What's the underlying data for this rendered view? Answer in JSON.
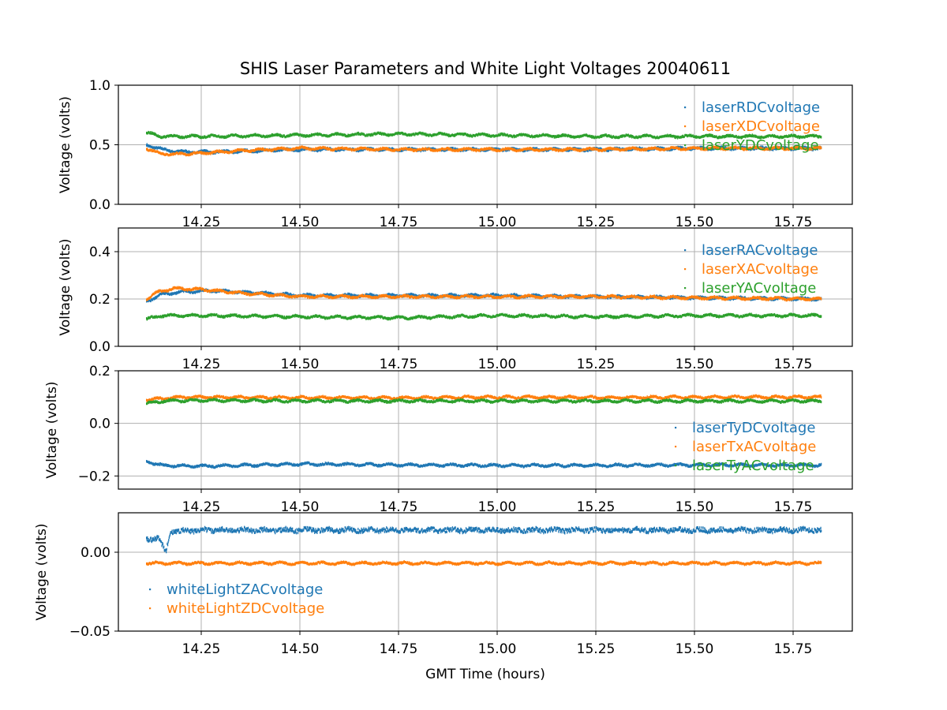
{
  "chart_data": {
    "type": "scatter",
    "title": "SHIS Laser Parameters and White Light Voltages 20040611",
    "xlabel": "GMT Time (hours)",
    "xlim": [
      14.04,
      15.9
    ],
    "xticks": [
      14.25,
      14.5,
      14.75,
      15.0,
      15.25,
      15.5,
      15.75
    ],
    "xtick_labels": [
      "14.25",
      "14.50",
      "14.75",
      "15.00",
      "15.25",
      "15.50",
      "15.75"
    ],
    "x_range": [
      14.11,
      15.82
    ],
    "grid": true,
    "subplots": [
      {
        "ylabel": "Voltage (volts)",
        "ylim": [
          0.0,
          1.0
        ],
        "yticks": [
          0.0,
          0.5,
          1.0
        ],
        "ytick_labels": [
          "0.0",
          "0.5",
          "1.0"
        ],
        "legend": "upper-right",
        "series": [
          {
            "name": "laserRDCvoltage",
            "color": "#1f77b4",
            "points": [
              [
                14.11,
                0.5
              ],
              [
                14.15,
                0.46
              ],
              [
                14.2,
                0.44
              ],
              [
                14.3,
                0.44
              ],
              [
                14.4,
                0.45
              ],
              [
                14.5,
                0.46
              ],
              [
                14.75,
                0.46
              ],
              [
                15.0,
                0.46
              ],
              [
                15.25,
                0.46
              ],
              [
                15.5,
                0.47
              ],
              [
                15.82,
                0.47
              ]
            ]
          },
          {
            "name": "laserXDCvoltage",
            "color": "#ff7f0e",
            "points": [
              [
                14.11,
                0.47
              ],
              [
                14.14,
                0.43
              ],
              [
                14.18,
                0.42
              ],
              [
                14.25,
                0.43
              ],
              [
                14.35,
                0.45
              ],
              [
                14.5,
                0.47
              ],
              [
                14.75,
                0.46
              ],
              [
                15.0,
                0.46
              ],
              [
                15.25,
                0.46
              ],
              [
                15.5,
                0.47
              ],
              [
                15.82,
                0.47
              ]
            ]
          },
          {
            "name": "laserYDCvoltage",
            "color": "#2ca02c",
            "points": [
              [
                14.11,
                0.6
              ],
              [
                14.15,
                0.57
              ],
              [
                14.25,
                0.57
              ],
              [
                14.5,
                0.58
              ],
              [
                14.75,
                0.59
              ],
              [
                15.0,
                0.58
              ],
              [
                15.25,
                0.57
              ],
              [
                15.5,
                0.57
              ],
              [
                15.82,
                0.57
              ]
            ]
          }
        ]
      },
      {
        "ylabel": "Voltage (volts)",
        "ylim": [
          0.0,
          0.5
        ],
        "yticks": [
          0.0,
          0.2,
          0.4
        ],
        "ytick_labels": [
          "0.0",
          "0.2",
          "0.4"
        ],
        "legend": "upper-right",
        "series": [
          {
            "name": "laserRACvoltage",
            "color": "#1f77b4",
            "points": [
              [
                14.11,
                0.19
              ],
              [
                14.15,
                0.22
              ],
              [
                14.2,
                0.23
              ],
              [
                14.28,
                0.235
              ],
              [
                14.4,
                0.225
              ],
              [
                14.5,
                0.215
              ],
              [
                14.75,
                0.215
              ],
              [
                15.0,
                0.215
              ],
              [
                15.25,
                0.21
              ],
              [
                15.5,
                0.205
              ],
              [
                15.82,
                0.2
              ]
            ]
          },
          {
            "name": "laserXACvoltage",
            "color": "#ff7f0e",
            "points": [
              [
                14.11,
                0.2
              ],
              [
                14.14,
                0.23
              ],
              [
                14.18,
                0.245
              ],
              [
                14.25,
                0.24
              ],
              [
                14.35,
                0.225
              ],
              [
                14.5,
                0.21
              ],
              [
                14.75,
                0.21
              ],
              [
                15.0,
                0.21
              ],
              [
                15.25,
                0.21
              ],
              [
                15.5,
                0.205
              ],
              [
                15.82,
                0.2
              ]
            ]
          },
          {
            "name": "laserYACvoltage",
            "color": "#2ca02c",
            "points": [
              [
                14.11,
                0.115
              ],
              [
                14.15,
                0.13
              ],
              [
                14.25,
                0.13
              ],
              [
                14.5,
                0.125
              ],
              [
                14.75,
                0.12
              ],
              [
                15.0,
                0.13
              ],
              [
                15.25,
                0.125
              ],
              [
                15.5,
                0.13
              ],
              [
                15.82,
                0.13
              ]
            ]
          }
        ]
      },
      {
        "ylabel": "Voltage (volts)",
        "ylim": [
          -0.25,
          0.2
        ],
        "yticks": [
          -0.2,
          0.0,
          0.2
        ],
        "ytick_labels": [
          "−0.2",
          "0.0",
          "0.2"
        ],
        "legend": "center-right",
        "series": [
          {
            "name": "laserTyDCvoltage",
            "color": "#1f77b4",
            "points": [
              [
                14.11,
                -0.145
              ],
              [
                14.15,
                -0.16
              ],
              [
                14.25,
                -0.163
              ],
              [
                14.5,
                -0.155
              ],
              [
                14.75,
                -0.158
              ],
              [
                15.0,
                -0.16
              ],
              [
                15.25,
                -0.16
              ],
              [
                15.5,
                -0.158
              ],
              [
                15.82,
                -0.16
              ]
            ]
          },
          {
            "name": "laserTxACvoltage",
            "color": "#ff7f0e",
            "points": [
              [
                14.11,
                0.09
              ],
              [
                14.2,
                0.1
              ],
              [
                14.5,
                0.098
              ],
              [
                14.75,
                0.097
              ],
              [
                15.0,
                0.1
              ],
              [
                15.25,
                0.098
              ],
              [
                15.5,
                0.1
              ],
              [
                15.82,
                0.1
              ]
            ]
          },
          {
            "name": "laserTyACvoltage",
            "color": "#2ca02c",
            "points": [
              [
                14.11,
                0.075
              ],
              [
                14.15,
                0.085
              ],
              [
                14.25,
                0.088
              ],
              [
                14.5,
                0.085
              ],
              [
                14.75,
                0.085
              ],
              [
                15.0,
                0.085
              ],
              [
                15.25,
                0.085
              ],
              [
                15.5,
                0.085
              ],
              [
                15.82,
                0.085
              ]
            ]
          }
        ]
      },
      {
        "ylabel": "Voltage (volts)",
        "ylim": [
          -0.05,
          0.025
        ],
        "yticks": [
          -0.05,
          0.0
        ],
        "ytick_labels": [
          "−0.05",
          "0.00"
        ],
        "legend": "lower-left",
        "series": [
          {
            "name": "whiteLightZACvoltage",
            "color": "#1f77b4",
            "points": [
              [
                14.11,
                0.008
              ],
              [
                14.14,
                0.009
              ],
              [
                14.155,
                0.002
              ],
              [
                14.16,
                0.001
              ],
              [
                14.17,
                0.013
              ],
              [
                14.25,
                0.014
              ],
              [
                14.5,
                0.014
              ],
              [
                14.75,
                0.014
              ],
              [
                15.0,
                0.014
              ],
              [
                15.25,
                0.014
              ],
              [
                15.5,
                0.014
              ],
              [
                15.82,
                0.014
              ]
            ]
          },
          {
            "name": "whiteLightZDCvoltage",
            "color": "#ff7f0e",
            "points": [
              [
                14.11,
                -0.007
              ],
              [
                14.5,
                -0.007
              ],
              [
                15.0,
                -0.007
              ],
              [
                15.5,
                -0.007
              ],
              [
                15.82,
                -0.007
              ]
            ]
          }
        ]
      }
    ]
  }
}
